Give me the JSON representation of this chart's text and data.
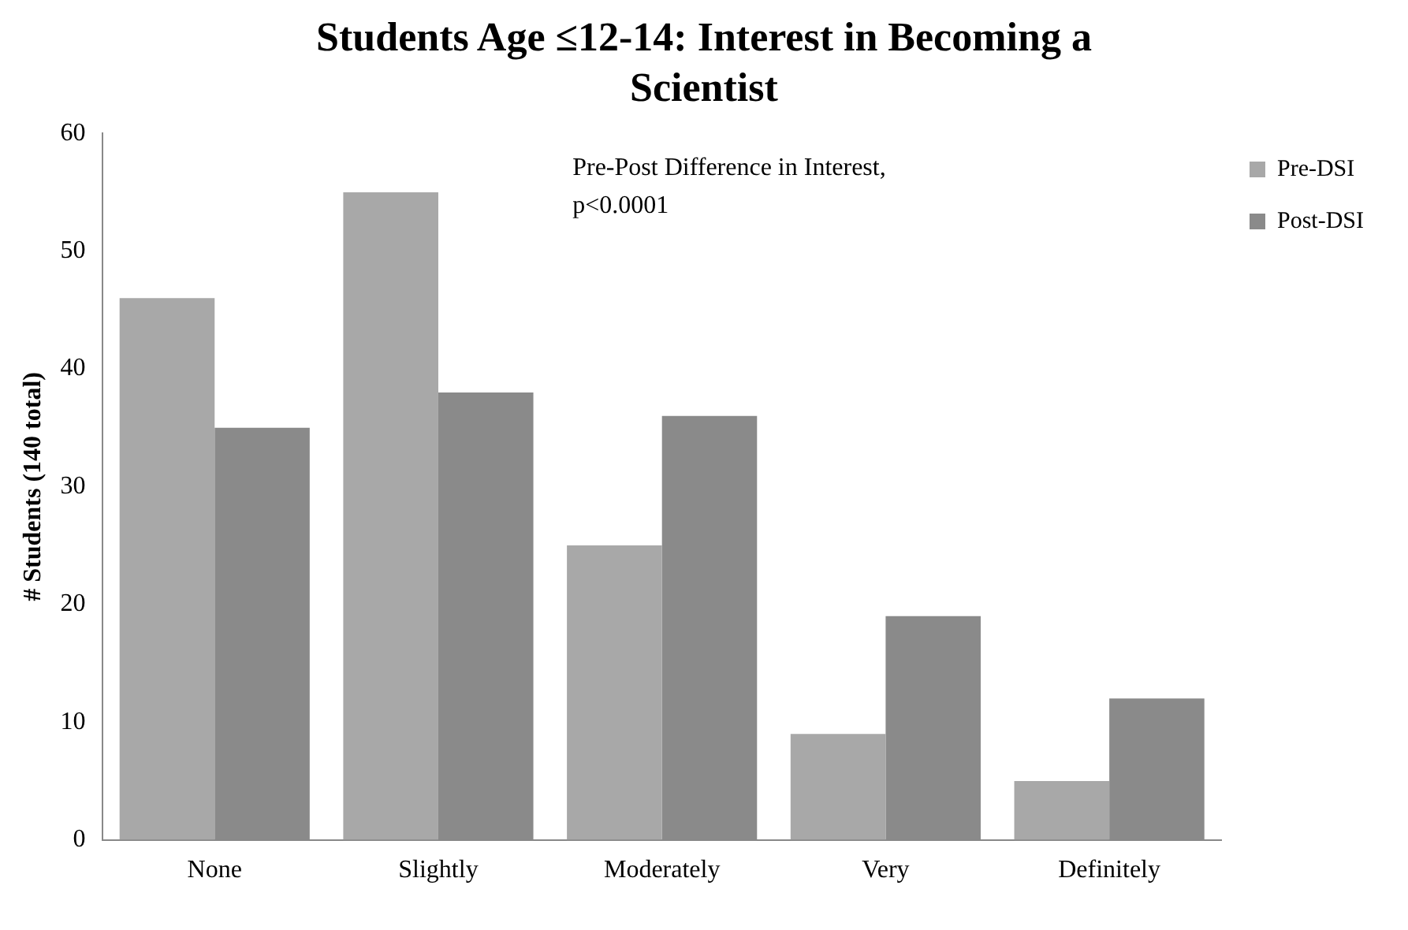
{
  "chart_data": {
    "type": "bar",
    "title": "Students Age ≤12-14: Interest in Becoming a Scientist",
    "ylabel": "# Students (140 total)",
    "categories": [
      "None",
      "Slightly",
      "Moderately",
      "Very",
      "Definitely"
    ],
    "series": [
      {
        "name": "Pre-DSI",
        "color": "#a8a8a8",
        "values": [
          46,
          55,
          25,
          9,
          5
        ]
      },
      {
        "name": "Post-DSI",
        "color": "#8a8a8a",
        "values": [
          35,
          38,
          36,
          19,
          12
        ]
      }
    ],
    "ylim": [
      0,
      60
    ],
    "yticks": [
      0,
      10,
      20,
      30,
      40,
      50,
      60
    ],
    "grid": false,
    "legend": "right",
    "annotations": [
      "Pre-Post Difference in Interest, p<0.0001"
    ]
  }
}
